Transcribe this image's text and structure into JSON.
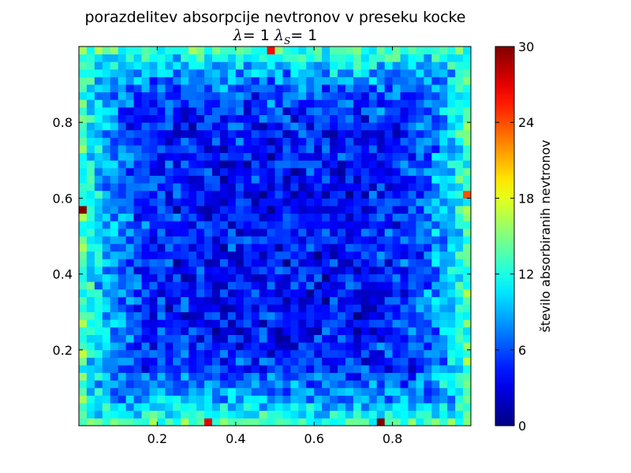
{
  "chart_data": {
    "type": "heatmap",
    "title": "porazdelitev absorpcije nevtronov v preseku kocke",
    "subtitle": {
      "lambda_symbol": "λ",
      "lambda_value": "1",
      "lambda_s_symbol": "λ",
      "lambda_s_subscript": "S",
      "lambda_s_value": "1",
      "equals": "="
    },
    "grid": {
      "rows": 50,
      "cols": 50,
      "x_range": [
        0,
        1
      ],
      "y_range": [
        0,
        1
      ]
    },
    "xticks": [
      0.2,
      0.4,
      0.6,
      0.8
    ],
    "yticks": [
      0.2,
      0.4,
      0.6,
      0.8
    ],
    "xtick_labels": [
      "0.2",
      "0.4",
      "0.6",
      "0.8"
    ],
    "ytick_labels": [
      "0.2",
      "0.4",
      "0.6",
      "0.8"
    ],
    "colormap": "jet",
    "value_range": [
      0,
      30
    ],
    "typical_center_value": 4,
    "typical_edge_value": 14,
    "hot_cells": [
      {
        "x": 0.005,
        "y": 0.565,
        "value": 30
      },
      {
        "x": 0.775,
        "y": 0.005,
        "value": 30
      },
      {
        "x": 0.335,
        "y": 0.005,
        "value": 27
      },
      {
        "x": 0.495,
        "y": 0.995,
        "value": 26
      },
      {
        "x": 0.995,
        "y": 0.605,
        "value": 24
      }
    ],
    "colorbar": {
      "label": "število absorbiranih nevtronov",
      "ticks": [
        0,
        6,
        12,
        18,
        24,
        30
      ],
      "tick_labels": [
        "0",
        "6",
        "12",
        "18",
        "24",
        "30"
      ]
    }
  }
}
